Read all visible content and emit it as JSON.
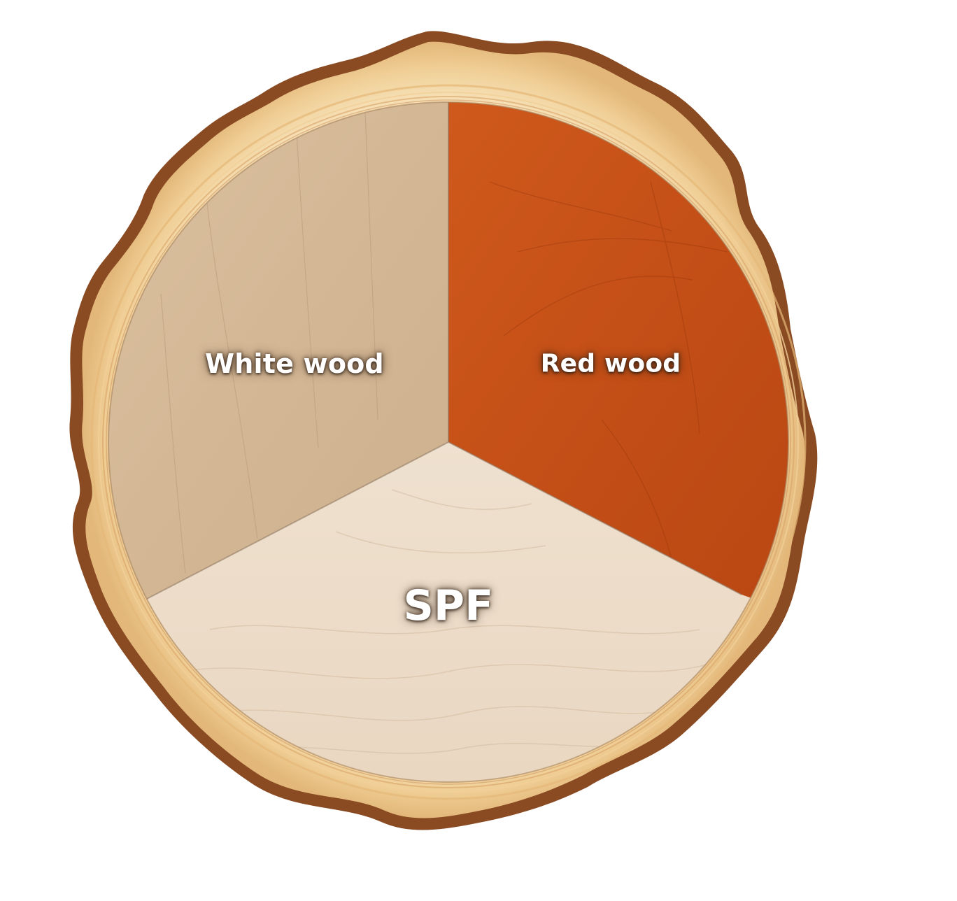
{
  "segments": [
    {
      "id": "white-wood",
      "label": "White wood",
      "color": "#d6bc9c"
    },
    {
      "id": "red-wood",
      "label": "Red wood",
      "color": "#c75219"
    },
    {
      "id": "spf",
      "label": "SPF",
      "color": "#ecdcc8"
    }
  ],
  "colors": {
    "bark": "#8a4a22",
    "sapwood": "#f3d9a8",
    "ring": "#e2b070",
    "background": "#ffffff"
  }
}
